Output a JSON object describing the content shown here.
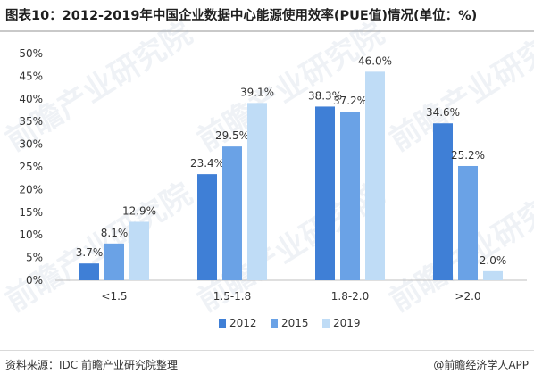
{
  "title": "图表10：2012-2019年中国企业数据中心能源使用效率(PUE值)情况(单位：%)",
  "source": "资料来源：IDC 前瞻产业研究院整理",
  "credit": "@前瞻经济学人APP",
  "watermark": "前瞻产业研究院",
  "colors": {
    "2012": "#3f7fd6",
    "2015": "#6aa2e6",
    "2019": "#bfdcf6"
  },
  "chart_data": {
    "type": "bar",
    "title": "图表10：2012-2019年中国企业数据中心能源使用效率(PUE值)情况(单位：%)",
    "categories": [
      "<1.5",
      "1.5-1.8",
      "1.8-2.0",
      ">2.0"
    ],
    "series": [
      {
        "name": "2012",
        "values": [
          3.7,
          23.4,
          38.3,
          34.6
        ],
        "labels": [
          "3.7%",
          "23.4%",
          "38.3%",
          "34.6%"
        ]
      },
      {
        "name": "2015",
        "values": [
          8.1,
          29.5,
          37.2,
          25.2
        ],
        "labels": [
          "8.1%",
          "29.5%",
          "37.2%",
          "25.2%"
        ]
      },
      {
        "name": "2019",
        "values": [
          12.9,
          39.1,
          46.0,
          2.0
        ],
        "labels": [
          "12.9%",
          "39.1%",
          "46.0%",
          "2.0%"
        ]
      }
    ],
    "yticks": [
      "0%",
      "5%",
      "10%",
      "15%",
      "20%",
      "25%",
      "30%",
      "35%",
      "40%",
      "45%",
      "50%"
    ],
    "ylim": [
      0,
      50
    ],
    "legend": "bottom",
    "grid": false
  }
}
